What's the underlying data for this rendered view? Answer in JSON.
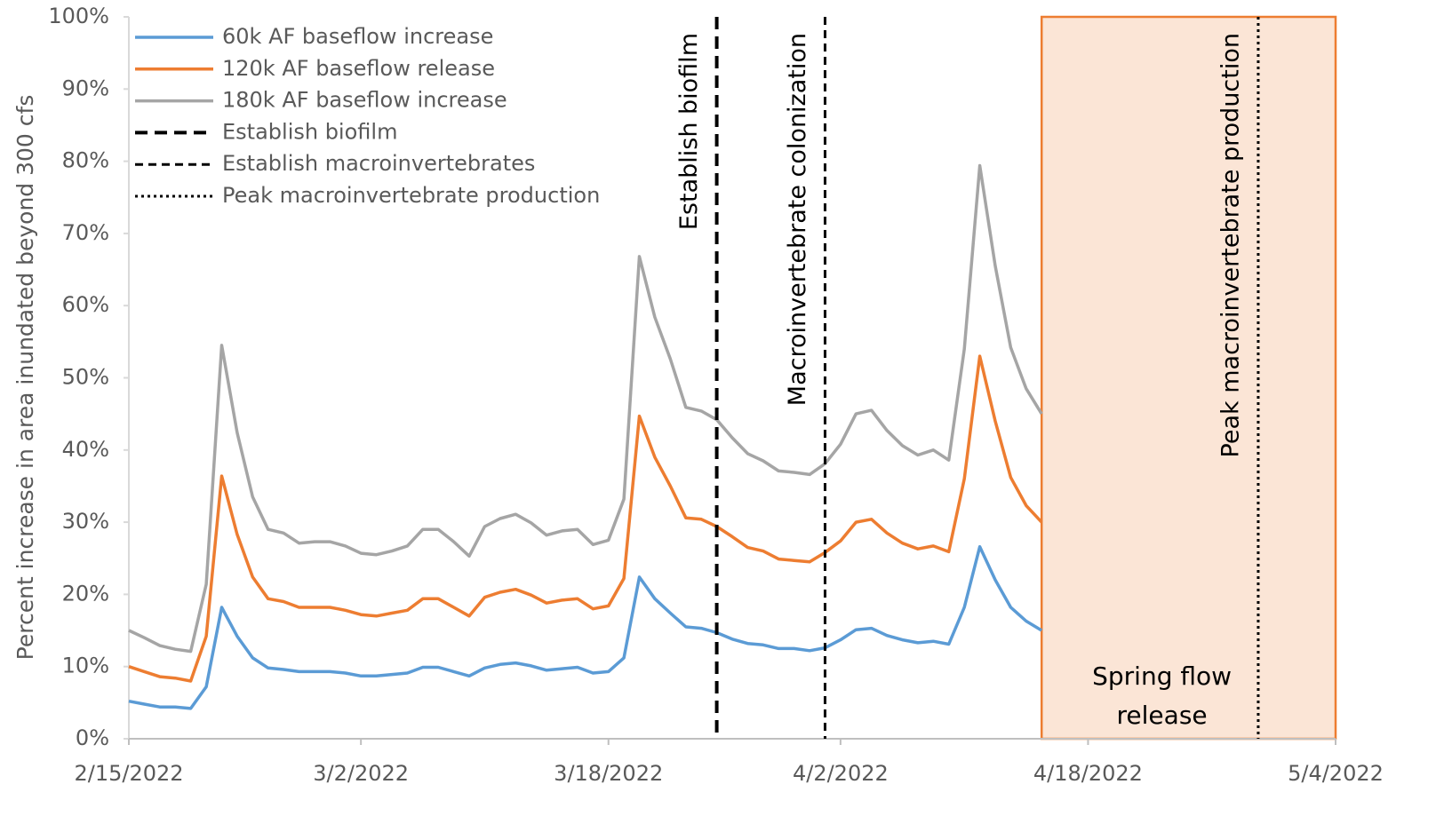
{
  "chart_data": {
    "type": "line",
    "y_label": "Percent increase in area inundated beyond 300 cfs",
    "x": [
      "2022-02-15",
      "2022-02-16",
      "2022-02-17",
      "2022-02-18",
      "2022-02-19",
      "2022-02-20",
      "2022-02-21",
      "2022-02-22",
      "2022-02-23",
      "2022-02-24",
      "2022-02-25",
      "2022-02-26",
      "2022-02-27",
      "2022-02-28",
      "2022-03-01",
      "2022-03-02",
      "2022-03-03",
      "2022-03-04",
      "2022-03-05",
      "2022-03-06",
      "2022-03-07",
      "2022-03-08",
      "2022-03-09",
      "2022-03-10",
      "2022-03-11",
      "2022-03-12",
      "2022-03-13",
      "2022-03-14",
      "2022-03-15",
      "2022-03-16",
      "2022-03-17",
      "2022-03-18",
      "2022-03-19",
      "2022-03-20",
      "2022-03-21",
      "2022-03-22",
      "2022-03-23",
      "2022-03-24",
      "2022-03-25",
      "2022-03-26",
      "2022-03-27",
      "2022-03-28",
      "2022-03-29",
      "2022-03-30",
      "2022-03-31",
      "2022-04-01",
      "2022-04-02",
      "2022-04-03",
      "2022-04-04",
      "2022-04-05",
      "2022-04-06",
      "2022-04-07",
      "2022-04-08",
      "2022-04-09",
      "2022-04-10",
      "2022-04-11",
      "2022-04-12",
      "2022-04-13",
      "2022-04-14",
      "2022-04-15"
    ],
    "series": [
      {
        "name": "60k AF baseflow increase",
        "color": "#5b9bd5",
        "values": [
          5.2,
          4.8,
          4.4,
          4.4,
          4.2,
          7.2,
          18.2,
          14.2,
          11.2,
          9.8,
          9.6,
          9.3,
          9.3,
          9.3,
          9.1,
          8.7,
          8.7,
          8.9,
          9.1,
          9.9,
          9.9,
          9.3,
          8.7,
          9.8,
          10.3,
          10.5,
          10.1,
          9.5,
          9.7,
          9.9,
          9.1,
          9.3,
          11.2,
          22.4,
          19.4,
          17.4,
          15.5,
          15.3,
          14.7,
          13.8,
          13.2,
          13.0,
          12.5,
          12.5,
          12.2,
          12.6,
          13.7,
          15.1,
          15.3,
          14.3,
          13.7,
          13.3,
          13.5,
          13.1,
          18.2,
          26.6,
          22.0,
          18.2,
          16.3,
          15.0
        ]
      },
      {
        "name": "120k AF baseflow release",
        "color": "#ed7d31",
        "values": [
          10.0,
          9.3,
          8.6,
          8.4,
          8.0,
          14.2,
          36.4,
          28.3,
          22.4,
          19.4,
          19.0,
          18.2,
          18.2,
          18.2,
          17.8,
          17.2,
          17.0,
          17.4,
          17.8,
          19.4,
          19.4,
          18.2,
          17.0,
          19.6,
          20.3,
          20.7,
          19.9,
          18.8,
          19.2,
          19.4,
          18.0,
          18.4,
          22.2,
          44.7,
          39.0,
          35.0,
          30.6,
          30.4,
          29.4,
          28.0,
          26.5,
          26.0,
          24.9,
          24.7,
          24.5,
          25.8,
          27.4,
          30.0,
          30.4,
          28.5,
          27.1,
          26.3,
          26.7,
          25.9,
          36.0,
          53.0,
          44.0,
          36.2,
          32.3,
          30.0
        ]
      },
      {
        "name": "180k AF baseflow increase",
        "color": "#a5a5a5",
        "values": [
          15.0,
          14.0,
          12.9,
          12.4,
          12.1,
          21.4,
          54.5,
          42.4,
          33.5,
          29.0,
          28.5,
          27.1,
          27.3,
          27.3,
          26.7,
          25.7,
          25.5,
          26.0,
          26.7,
          29.0,
          29.0,
          27.3,
          25.3,
          29.4,
          30.5,
          31.1,
          29.9,
          28.2,
          28.8,
          29.0,
          26.9,
          27.5,
          33.2,
          66.8,
          58.4,
          52.6,
          45.9,
          45.4,
          44.2,
          41.7,
          39.5,
          38.5,
          37.1,
          36.9,
          36.6,
          38.1,
          40.8,
          45.0,
          45.5,
          42.7,
          40.6,
          39.3,
          40.0,
          38.6,
          54.0,
          79.4,
          65.5,
          54.2,
          48.5,
          45.0
        ]
      }
    ],
    "vlines": [
      {
        "name": "Establish biofilm",
        "x": "2022-03-25",
        "dash": "long",
        "label": "Establish biofilm"
      },
      {
        "name": "Establish macroinvertebrates",
        "x": "2022-04-01",
        "dash": "short",
        "label": "Macroinvertebrate colonization"
      },
      {
        "name": "Peak macroinvertebrate production",
        "x": "2022-04-29",
        "dash": "dotted",
        "label": "Peak macroinvertebrate production"
      }
    ],
    "region": {
      "x": [
        "2022-04-15",
        "2022-05-04"
      ],
      "label": "Spring flow release",
      "color": "#fbe5d6",
      "edge": "#ed7d31"
    },
    "xlim": [
      "2022-02-15",
      "2022-05-04"
    ],
    "xticks": [
      {
        "value": "2022-02-15",
        "label": "2/15/2022"
      },
      {
        "value": "2022-03-02",
        "label": "3/2/2022"
      },
      {
        "value": "2022-03-18",
        "label": "3/18/2022"
      },
      {
        "value": "2022-04-02",
        "label": "4/2/2022"
      },
      {
        "value": "2022-04-18",
        "label": "4/18/2022"
      },
      {
        "value": "2022-05-04",
        "label": "5/4/2022"
      }
    ],
    "ylim": [
      0,
      100
    ],
    "yticks": [
      {
        "value": 0,
        "label": "0%"
      },
      {
        "value": 10,
        "label": "10%"
      },
      {
        "value": 20,
        "label": "20%"
      },
      {
        "value": 30,
        "label": "30%"
      },
      {
        "value": 40,
        "label": "40%"
      },
      {
        "value": 50,
        "label": "50%"
      },
      {
        "value": 60,
        "label": "60%"
      },
      {
        "value": 70,
        "label": "70%"
      },
      {
        "value": 80,
        "label": "80%"
      },
      {
        "value": 90,
        "label": "90%"
      },
      {
        "value": 100,
        "label": "100%"
      }
    ]
  }
}
